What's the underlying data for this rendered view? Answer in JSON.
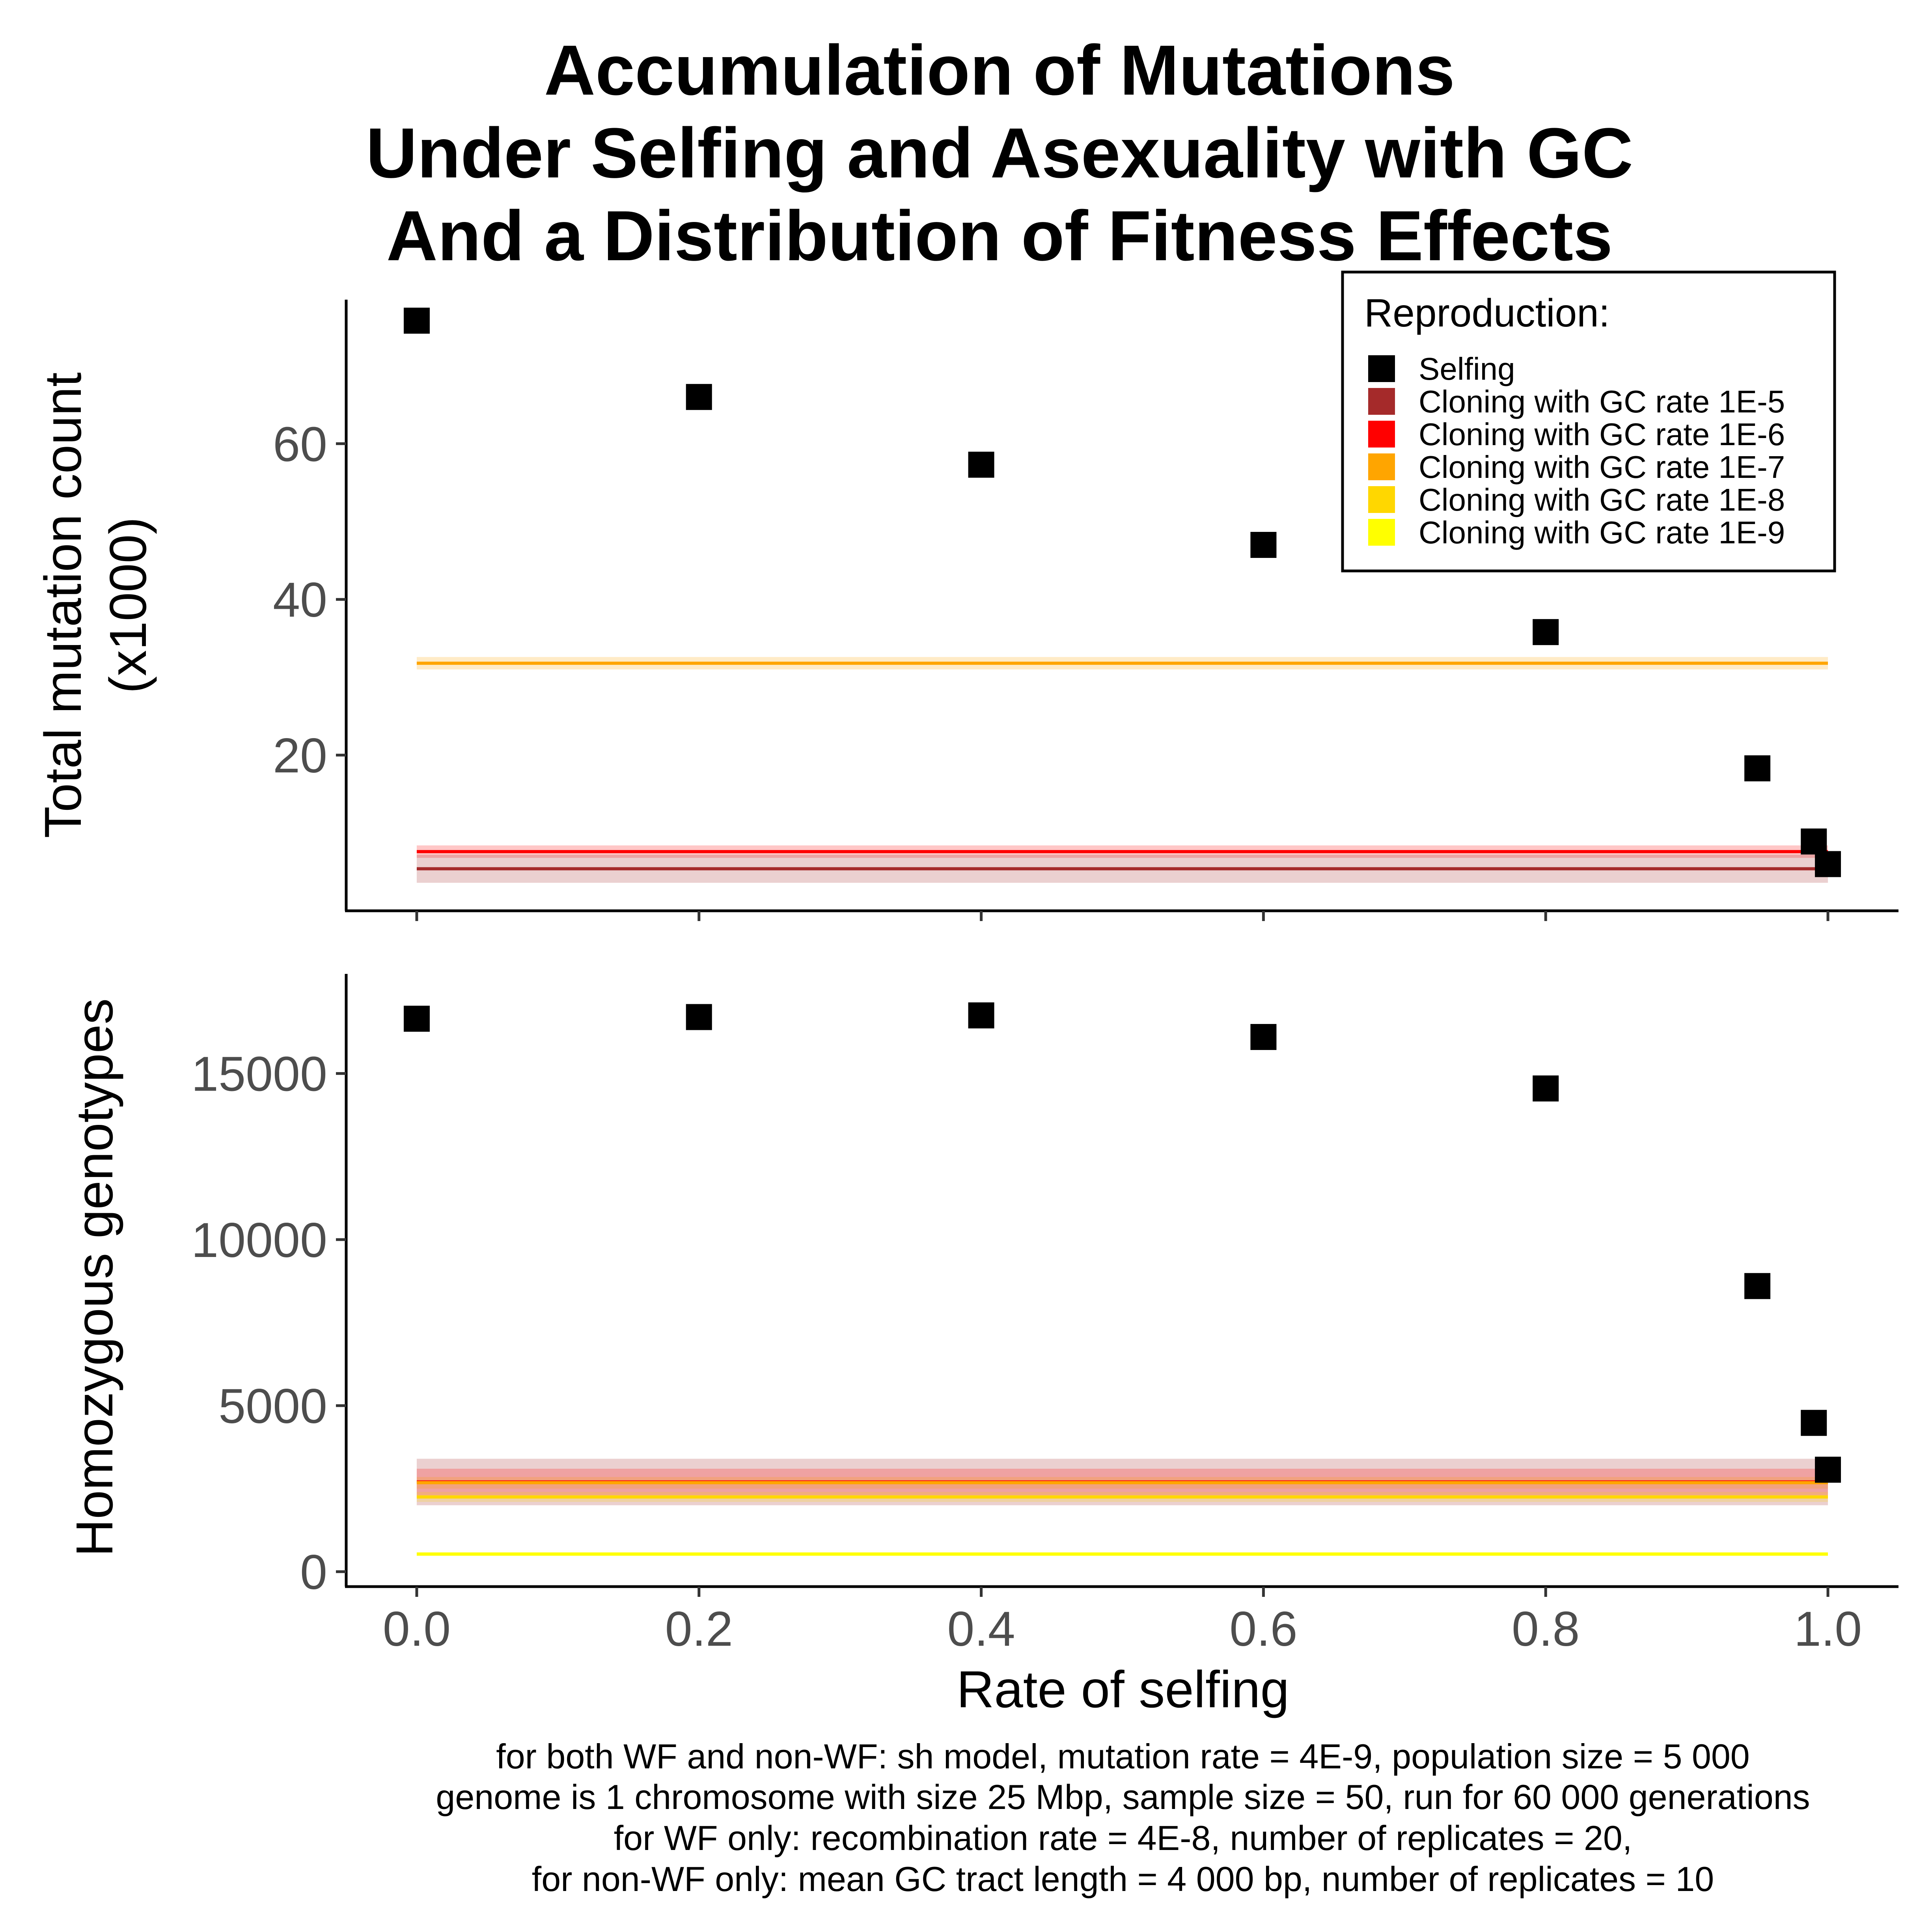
{
  "title_lines": [
    "Accumulation of Mutations",
    "Under Selfing and Asexuality with GC",
    "And a Distribution of Fitness Effects"
  ],
  "legend": {
    "title": "Reproduction:",
    "entries": [
      {
        "label": "Selfing",
        "color": "#000000"
      },
      {
        "label": "Cloning with GC rate 1E-5",
        "color": "#a52a2a"
      },
      {
        "label": "Cloning with GC rate 1E-6",
        "color": "#ff0000"
      },
      {
        "label": "Cloning with GC rate 1E-7",
        "color": "#ffa500"
      },
      {
        "label": "Cloning with GC rate 1E-8",
        "color": "#ffd700"
      },
      {
        "label": "Cloning with GC rate 1E-9",
        "color": "#ffff00"
      }
    ]
  },
  "caption_lines": [
    "for both WF and non-WF: sh model, mutation rate = 4E-9, population size = 5 000",
    "genome is 1 chromosome with size 25 Mbp, sample size = 50, run for 60 000 generations",
    "for WF only: recombination rate = 4E-8, number of replicates = 20,",
    "for non-WF only: mean GC tract length = 4 000 bp, number of replicates = 10"
  ],
  "chart_data": [
    {
      "type": "scatter",
      "panel": "top",
      "ylabel_lines": [
        "Total mutation count",
        "(x1000)"
      ],
      "xlabel": "",
      "xlim": [
        -0.05,
        1.05
      ],
      "ylim": [
        0,
        78.5
      ],
      "yticks": [
        20,
        40,
        60
      ],
      "ytick_labels": [
        "20",
        "40",
        "60"
      ],
      "xticks": [
        0,
        0.2,
        0.4,
        0.6,
        0.8,
        1.0
      ],
      "xtick_labels": [],
      "grid": false,
      "series": [
        {
          "name": "Selfing",
          "color": "#000000",
          "x": [
            0,
            0.2,
            0.4,
            0.6,
            0.8,
            0.95,
            0.99,
            1.0
          ],
          "y": [
            75.8,
            66.0,
            57.3,
            47.0,
            35.8,
            18.3,
            8.9,
            6.0
          ]
        }
      ],
      "hlines": [
        {
          "name": "Cloning with GC rate 1E-7",
          "color": "#ffa500",
          "y": 31.8,
          "band": [
            31.0,
            32.6
          ]
        },
        {
          "name": "Cloning with GC rate 1E-6",
          "color": "#ff0000",
          "y": 7.6,
          "band": [
            6.8,
            8.4
          ]
        },
        {
          "name": "Cloning with GC rate 1E-5",
          "color": "#a52a2a",
          "y": 5.4,
          "band": [
            3.6,
            7.2
          ]
        }
      ]
    },
    {
      "type": "scatter",
      "panel": "bottom",
      "ylabel_lines": [
        "Homozygous genotypes"
      ],
      "xlabel": "Rate of selfing",
      "xlim": [
        -0.05,
        1.05
      ],
      "ylim": [
        -450,
        18000
      ],
      "yticks": [
        0,
        5000,
        10000,
        15000
      ],
      "ytick_labels": [
        "0",
        "5000",
        "10000",
        "15000"
      ],
      "xticks": [
        0,
        0.2,
        0.4,
        0.6,
        0.8,
        1.0
      ],
      "xtick_labels": [
        "0.0",
        "0.2",
        "0.4",
        "0.6",
        "0.8",
        "1.0"
      ],
      "grid": false,
      "series": [
        {
          "name": "Selfing",
          "color": "#000000",
          "x": [
            0,
            0.2,
            0.4,
            0.6,
            0.8,
            0.95,
            0.99,
            1.0
          ],
          "y": [
            16650,
            16700,
            16750,
            16100,
            14550,
            8600,
            4480,
            3070
          ],
          "err": [
            0,
            150,
            0,
            250,
            250,
            0,
            0,
            0
          ]
        }
      ],
      "hlines": [
        {
          "name": "Cloning with GC rate 1E-5",
          "color": "#a52a2a",
          "y": 2700,
          "band": [
            2000,
            3400
          ]
        },
        {
          "name": "Cloning with GC rate 1E-6",
          "color": "#ff0000",
          "y": 2700,
          "band": [
            2300,
            3100
          ]
        },
        {
          "name": "Cloning with GC rate 1E-7",
          "color": "#ffa500",
          "y": 2680,
          "band": [
            2500,
            2850
          ]
        },
        {
          "name": "Cloning with GC rate 1E-8",
          "color": "#ffd700",
          "y": 2250,
          "band": [
            2100,
            2400
          ]
        },
        {
          "name": "Cloning with GC rate 1E-9",
          "color": "#ffff00",
          "y": 530,
          "band": [
            470,
            590
          ]
        }
      ]
    }
  ]
}
